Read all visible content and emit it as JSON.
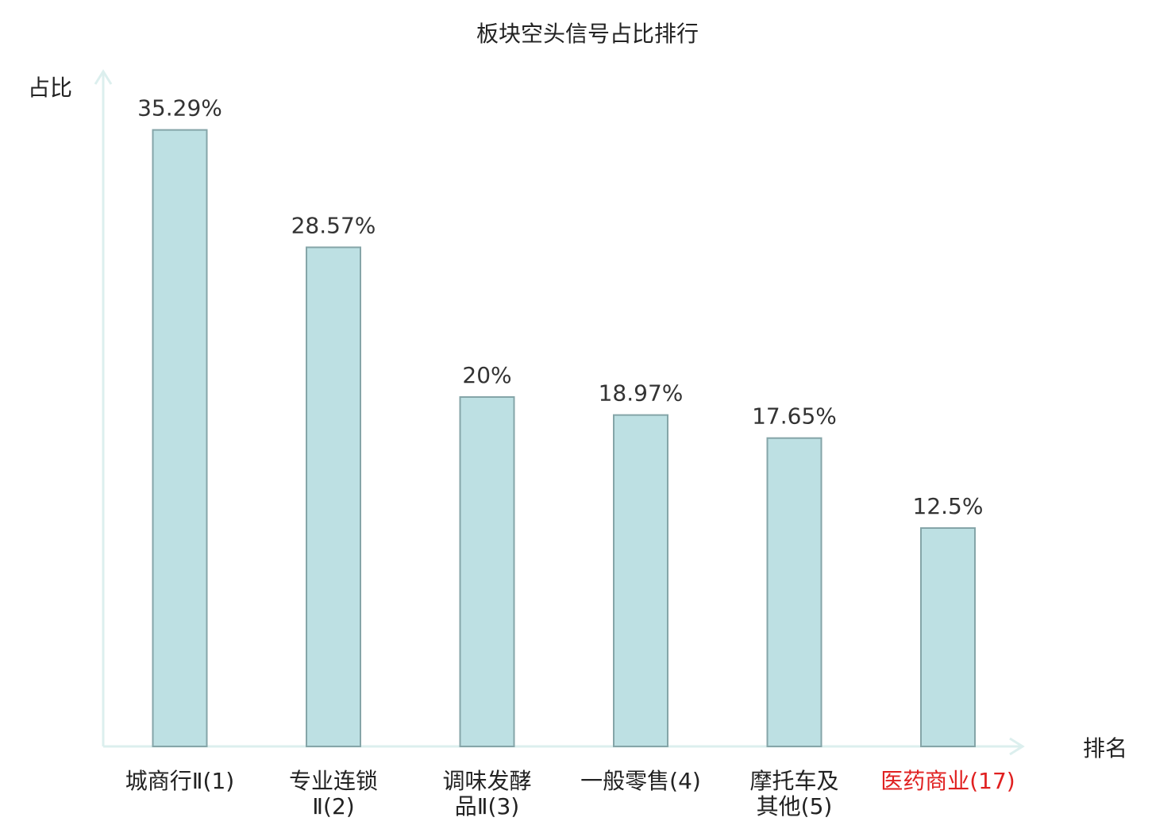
{
  "chart_data": {
    "type": "bar",
    "title": "板块空头信号占比排行",
    "ylabel": "占比",
    "xlabel": "排名",
    "ylim": [
      0,
      37.5
    ],
    "grid": false,
    "categories": [
      {
        "lines": [
          "城商行Ⅱ(1)"
        ],
        "highlight": false
      },
      {
        "lines": [
          "专业连锁",
          "Ⅱ(2)"
        ],
        "highlight": false
      },
      {
        "lines": [
          "调味发酵",
          "品Ⅱ(3)"
        ],
        "highlight": false
      },
      {
        "lines": [
          "一般零售(4)"
        ],
        "highlight": false
      },
      {
        "lines": [
          "摩托车及",
          "其他(5)"
        ],
        "highlight": false
      },
      {
        "lines": [
          "医药商业(17)"
        ],
        "highlight": true
      }
    ],
    "values": [
      35.29,
      28.57,
      20,
      18.97,
      17.65,
      12.5
    ],
    "value_labels": [
      "35.29%",
      "28.57%",
      "20%",
      "18.97%",
      "17.65%",
      "12.5%"
    ],
    "colors": {
      "bar_fill": "#bde0e3",
      "bar_stroke": "#85a5a8",
      "axis": "#dcefee",
      "text": "#333333",
      "label": "#222222",
      "highlight": "#e02020"
    }
  }
}
